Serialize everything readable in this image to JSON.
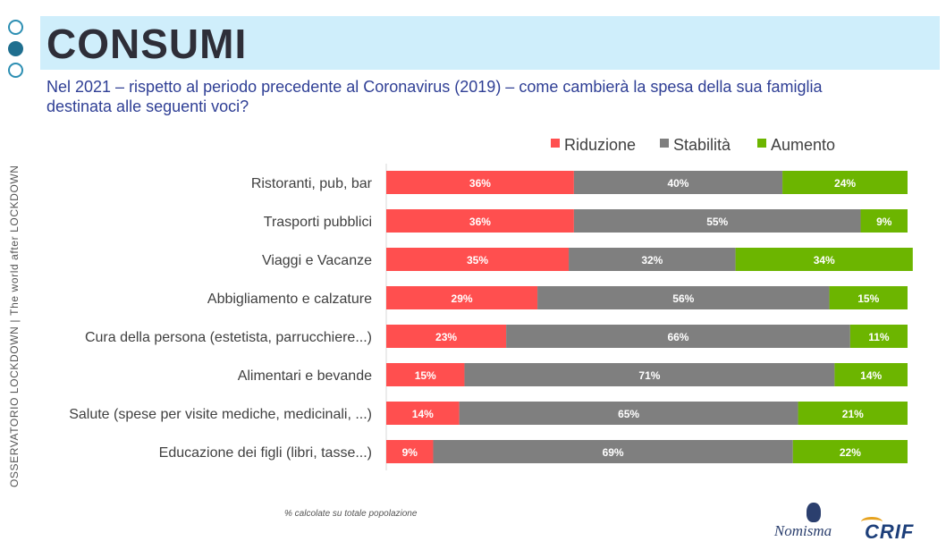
{
  "header": {
    "title": "CONSUMI",
    "subtitle": "Nel 2021 – rispetto al periodo precedente al Coronavirus (2019) – come cambierà la spesa della sua famiglia destinata alle seguenti voci?"
  },
  "sidebar": {
    "left_text": "OSSERVATORIO LOCKDOWN",
    "separator": "|",
    "right_text": "The world after LOCKDOWN"
  },
  "footnote": "% calcolate su totale popolazione",
  "logos": {
    "nomisma": "Nomisma",
    "crif": "CRIF"
  },
  "colors": {
    "title_band": "#cfeefb",
    "riduzione": "#ff4f4f",
    "stabilita": "#7f7f7f",
    "aumento": "#6cb500",
    "subtitle": "#2f3f95"
  },
  "chart_data": {
    "type": "bar",
    "orientation": "horizontal",
    "stacked": true,
    "stack_total": 100,
    "value_suffix": "%",
    "legend_position": "top-right",
    "categories": [
      "Ristoranti, pub, bar",
      "Trasporti pubblici",
      "Viaggi e Vacanze",
      "Abbigliamento e calzature",
      "Cura della persona (estetista, parrucchiere...)",
      "Alimentari e bevande",
      "Salute (spese per visite mediche, medicinali, ...)",
      "Educazione dei figli (libri, tasse...)"
    ],
    "series": [
      {
        "name": "Riduzione",
        "color": "#ff4f4f",
        "values": [
          36,
          36,
          35,
          29,
          23,
          15,
          14,
          9
        ]
      },
      {
        "name": "Stabilità",
        "color": "#7f7f7f",
        "values": [
          40,
          55,
          32,
          56,
          66,
          71,
          65,
          69
        ]
      },
      {
        "name": "Aumento",
        "color": "#6cb500",
        "values": [
          24,
          9,
          34,
          15,
          11,
          14,
          21,
          22
        ]
      }
    ]
  }
}
